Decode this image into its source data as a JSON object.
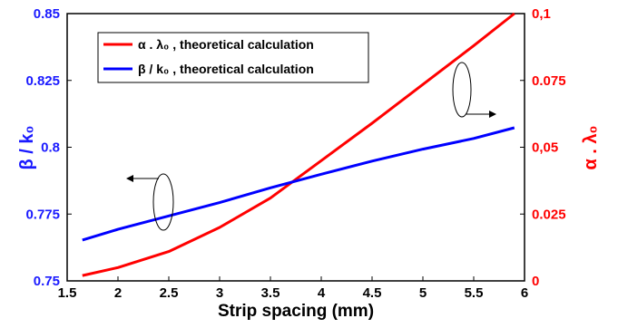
{
  "chart_data": {
    "type": "line",
    "xlabel": "Strip spacing (mm)",
    "ylabel_left": "β / k₀",
    "ylabel_right": "α . λ₀",
    "xlim": [
      1.5,
      6
    ],
    "ylim_left": [
      0.75,
      0.85
    ],
    "ylim_right": [
      0,
      0.1
    ],
    "x_ticks": [
      "1.5",
      "2",
      "2.5",
      "3",
      "3.5",
      "4",
      "4.5",
      "5",
      "5.5",
      "6"
    ],
    "y_left_ticks": [
      "0.75",
      "0.775",
      "0.8",
      "0.825",
      "0.85"
    ],
    "y_right_ticks": [
      "0",
      "0.025",
      "0,05",
      "0.075",
      "0,1"
    ],
    "grid": false,
    "legend_position": "top-left",
    "series": [
      {
        "name": "α . λ₀ , theoretical calculation",
        "axis": "right",
        "color": "#ff0000",
        "x": [
          1.65,
          2.0,
          2.5,
          3.0,
          3.5,
          4.0,
          4.5,
          5.0,
          5.5,
          5.9
        ],
        "y": [
          0.002,
          0.005,
          0.011,
          0.02,
          0.031,
          0.045,
          0.059,
          0.0735,
          0.088,
          0.1
        ]
      },
      {
        "name": "β / k₀ , theoretical calculation",
        "axis": "left",
        "color": "#0000ff",
        "x": [
          1.65,
          2.0,
          2.5,
          3.0,
          3.5,
          4.0,
          4.5,
          5.0,
          5.5,
          5.9
        ],
        "y": [
          0.7653,
          0.7693,
          0.7743,
          0.7793,
          0.7848,
          0.7899,
          0.7948,
          0.7993,
          0.8033,
          0.8073
        ]
      }
    ]
  }
}
